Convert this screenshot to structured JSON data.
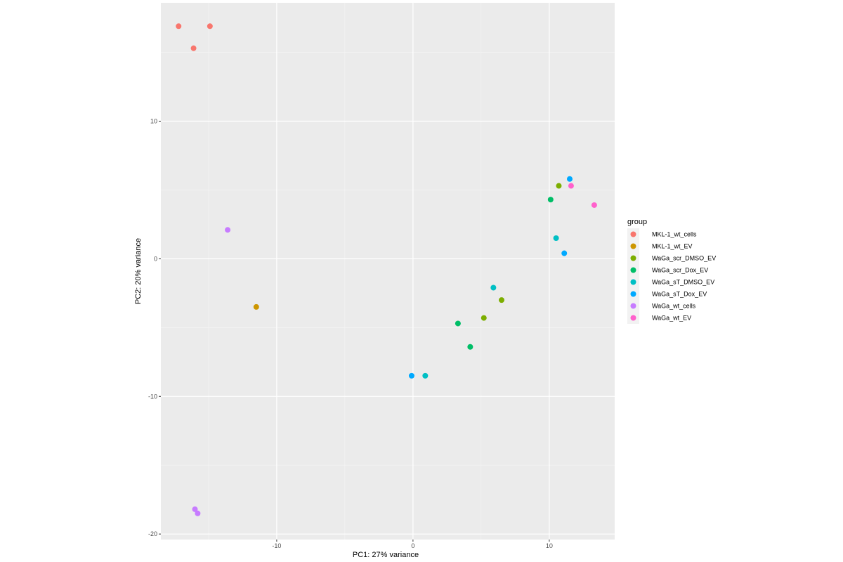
{
  "chart_data": {
    "type": "scatter",
    "xlabel": "PC1: 27% variance",
    "ylabel": "PC2: 20% variance",
    "xlim": [
      -18.5,
      14.8
    ],
    "ylim": [
      -20.4,
      18.6
    ],
    "x_ticks": [
      -10,
      0,
      10
    ],
    "y_ticks": [
      -20,
      -10,
      0,
      10
    ],
    "grid": true,
    "legend": {
      "title": "group",
      "position": "right"
    },
    "series": [
      {
        "name": "MKL-1_wt_cells",
        "color": "#F8766D",
        "points": [
          [
            -17.2,
            16.9
          ],
          [
            -14.9,
            16.9
          ],
          [
            -16.1,
            15.3
          ]
        ]
      },
      {
        "name": "MKL-1_wt_EV",
        "color": "#CD9600",
        "points": [
          [
            -11.5,
            -3.5
          ]
        ]
      },
      {
        "name": "WaGa_scr_DMSO_EV",
        "color": "#7CAE00",
        "points": [
          [
            10.7,
            5.3
          ],
          [
            6.5,
            -3.0
          ],
          [
            5.2,
            -4.3
          ]
        ]
      },
      {
        "name": "WaGa_scr_Dox_EV",
        "color": "#00BE67",
        "points": [
          [
            10.1,
            4.3
          ],
          [
            3.3,
            -4.7
          ],
          [
            4.2,
            -6.4
          ]
        ]
      },
      {
        "name": "WaGa_sT_DMSO_EV",
        "color": "#00BFC4",
        "points": [
          [
            10.5,
            1.5
          ],
          [
            5.9,
            -2.1
          ],
          [
            0.9,
            -8.5
          ]
        ]
      },
      {
        "name": "WaGa_sT_Dox_EV",
        "color": "#00A9FF",
        "points": [
          [
            11.5,
            5.8
          ],
          [
            11.1,
            0.4
          ],
          [
            -0.1,
            -8.5
          ]
        ]
      },
      {
        "name": "WaGa_wt_cells",
        "color": "#C77CFF",
        "points": [
          [
            -13.6,
            2.1
          ],
          [
            -16.0,
            -18.2
          ],
          [
            -15.8,
            -18.5
          ]
        ]
      },
      {
        "name": "WaGa_wt_EV",
        "color": "#FF61CC",
        "points": [
          [
            11.6,
            5.3
          ],
          [
            13.3,
            3.9
          ]
        ]
      }
    ]
  }
}
